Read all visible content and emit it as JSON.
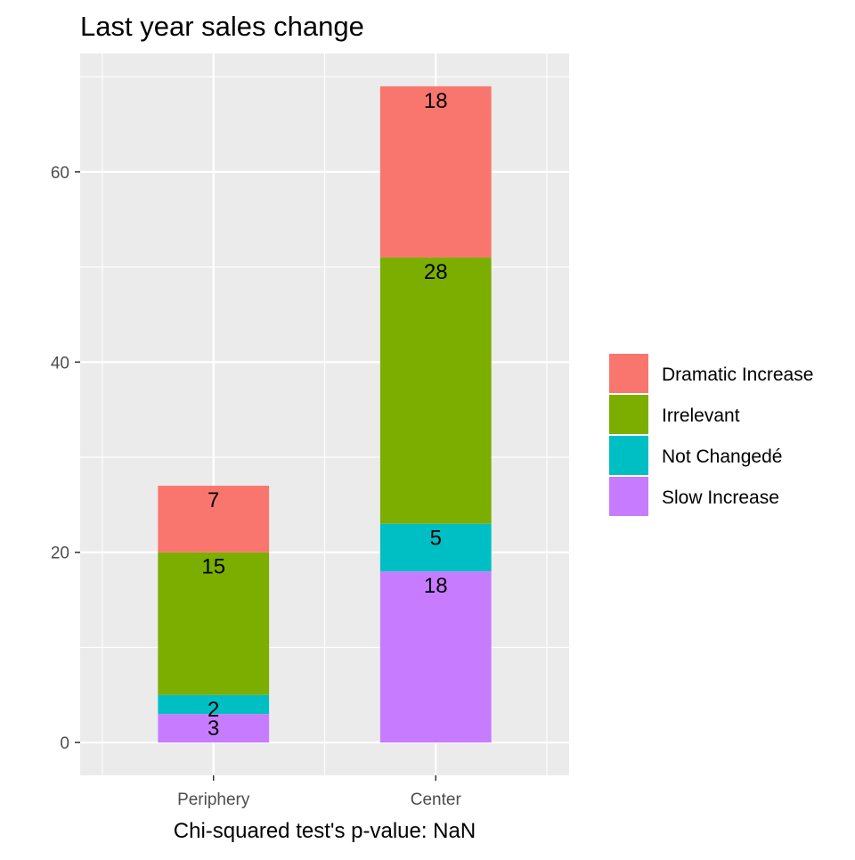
{
  "chart_data": {
    "type": "bar",
    "stacked": true,
    "title": "Last year sales change",
    "xlabel": "Chi-squared test's p-value: NaN",
    "ylabel": "",
    "categories": [
      "Periphery",
      "Center"
    ],
    "series": [
      {
        "name": "Slow Increase",
        "values": [
          3,
          18
        ],
        "color": "#C77CFF"
      },
      {
        "name": "Not Changedé",
        "values": [
          2,
          5
        ],
        "color": "#00BFC4"
      },
      {
        "name": "Irrelevant",
        "values": [
          15,
          28
        ],
        "color": "#7CAE00"
      },
      {
        "name": "Dramatic Increase",
        "values": [
          7,
          18
        ],
        "color": "#F8766D"
      }
    ],
    "legend_order": [
      "Dramatic Increase",
      "Irrelevant",
      "Not Changedé",
      "Slow Increase"
    ],
    "yticks": [
      0,
      20,
      40,
      60
    ],
    "ylim": [
      -3.45,
      72.45
    ],
    "grid": true,
    "legend_position": "right",
    "panel_background": "#EBEBEB"
  }
}
